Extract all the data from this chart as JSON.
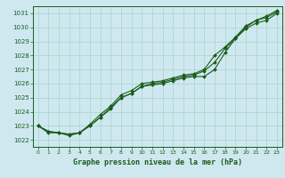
{
  "title": "Graphe pression niveau de la mer (hPa)",
  "bg_color": "#cfe8f0",
  "grid_color": "#a8d5c8",
  "line_color": "#1a5c1a",
  "xlim": [
    -0.5,
    23.5
  ],
  "ylim": [
    1021.5,
    1031.5
  ],
  "yticks": [
    1022,
    1023,
    1024,
    1025,
    1026,
    1027,
    1028,
    1029,
    1030,
    1031
  ],
  "xticks": [
    0,
    1,
    2,
    3,
    4,
    5,
    6,
    7,
    8,
    9,
    10,
    11,
    12,
    13,
    14,
    15,
    16,
    17,
    18,
    19,
    20,
    21,
    22,
    23
  ],
  "series": [
    [
      1023.0,
      1022.6,
      1022.5,
      1022.4,
      1022.5,
      1023.0,
      1023.6,
      1024.3,
      1025.0,
      1025.3,
      1025.8,
      1025.9,
      1026.0,
      1026.2,
      1026.4,
      1026.5,
      1026.5,
      1027.0,
      1028.2,
      1029.2,
      1029.9,
      1030.3,
      1030.5,
      1031.0
    ],
    [
      1023.0,
      1022.6,
      1022.5,
      1022.4,
      1022.5,
      1023.0,
      1023.6,
      1024.2,
      1025.0,
      1025.3,
      1025.8,
      1026.0,
      1026.1,
      1026.3,
      1026.5,
      1026.6,
      1026.9,
      1027.5,
      1028.5,
      1029.2,
      1030.0,
      1030.5,
      1030.7,
      1031.1
    ],
    [
      1023.0,
      1022.5,
      1022.5,
      1022.3,
      1022.5,
      1023.1,
      1023.8,
      1024.4,
      1025.2,
      1025.5,
      1026.0,
      1026.1,
      1026.2,
      1026.4,
      1026.6,
      1026.7,
      1027.0,
      1028.0,
      1028.6,
      1029.3,
      1030.1,
      1030.5,
      1030.8,
      1031.2
    ]
  ]
}
